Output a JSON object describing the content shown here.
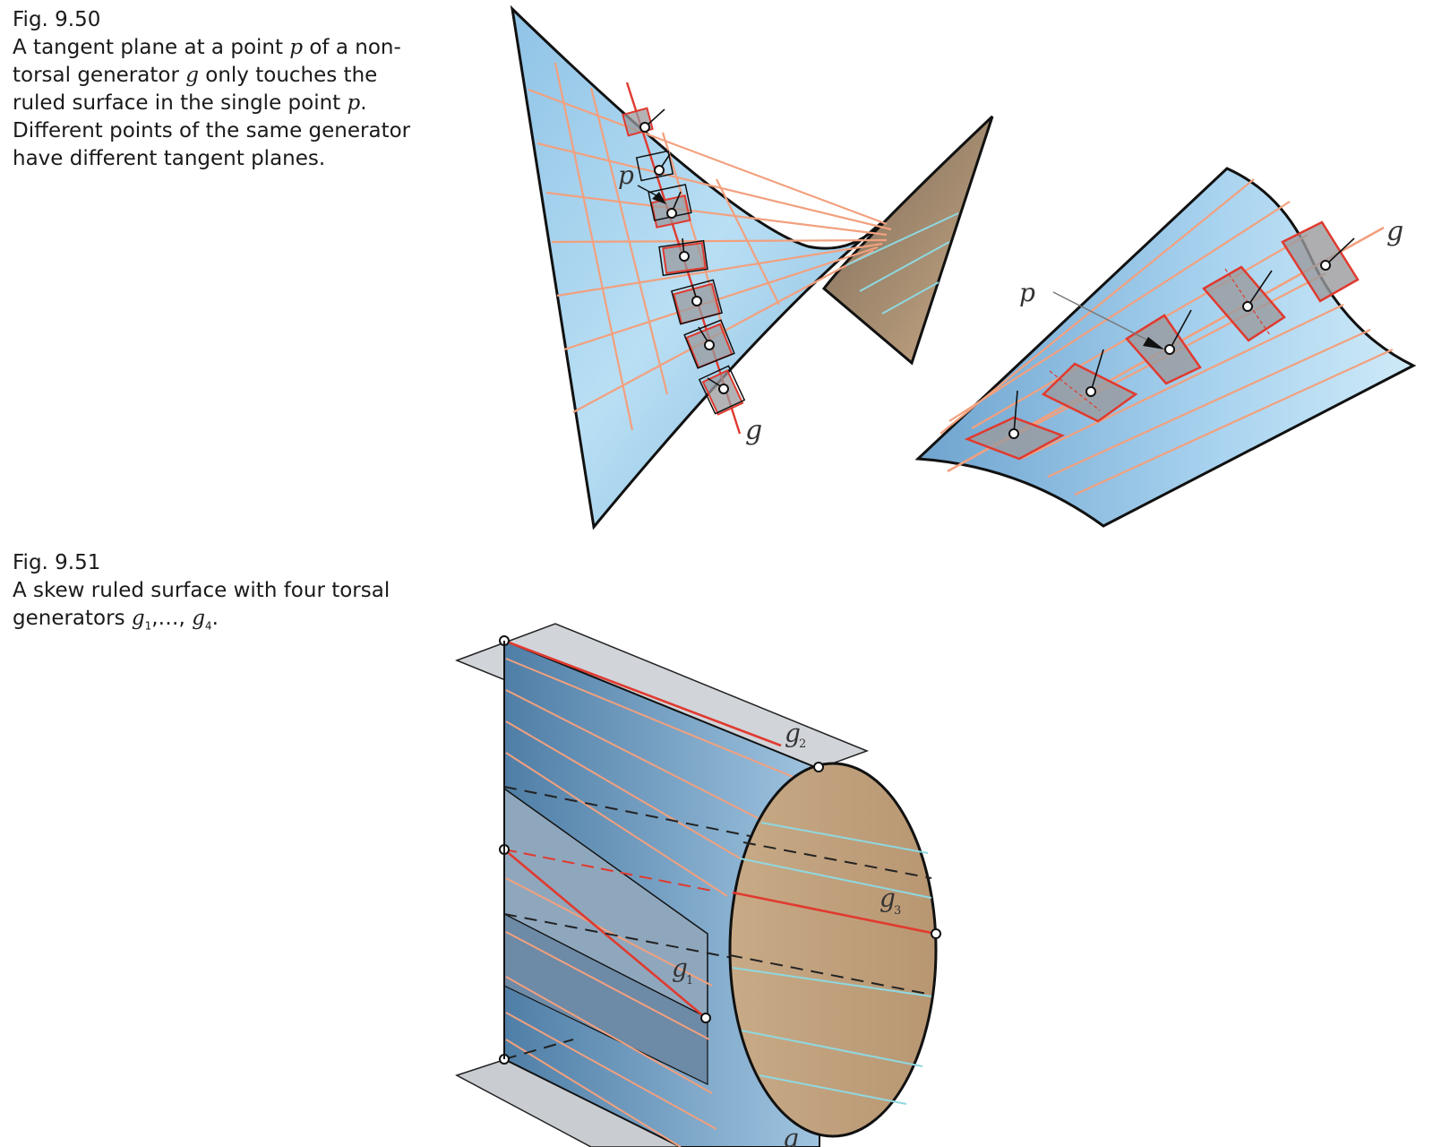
{
  "fig950": {
    "number": "Fig. 9.50",
    "line1_pre": "A tangent plane at a point ",
    "p": "p",
    "line1_post": " of a non-",
    "line2_pre": "torsal generator ",
    "g": "g",
    "line2_post": " only touches the",
    "line3_pre": "ruled surface in the single point ",
    "p2": "p",
    "line3_post": ".",
    "line4": "Different points of the same generator",
    "line5": "have different tangent planes.",
    "label_p_left": "p",
    "label_g_left": "g",
    "label_p_right": "p",
    "label_g_right": "g"
  },
  "fig951": {
    "number": "Fig. 9.51",
    "line1": "A skew ruled surface with four torsal",
    "line2_pre": "generators ",
    "g": "g",
    "s1": "1",
    "mid": ",…, ",
    "g4": "g",
    "s4": "4",
    "line2_post": ".",
    "label_g1": "g",
    "sub_g1": "1",
    "label_g2": "g",
    "sub_g2": "2",
    "label_g3": "g",
    "sub_g3": "3",
    "label_g4": "g"
  },
  "colors": {
    "surface_blue": "#a9d4ee",
    "surface_dark_blue": "#5f8fb5",
    "surface_brown": "#b89d7c",
    "generator_salmon": "#f2a07e",
    "generator_red": "#e03a2f",
    "generator_cyan": "#8fd8e0",
    "plane_grey": "#c9cdd2",
    "tangent_plane_grey": "#9a9a9e"
  }
}
